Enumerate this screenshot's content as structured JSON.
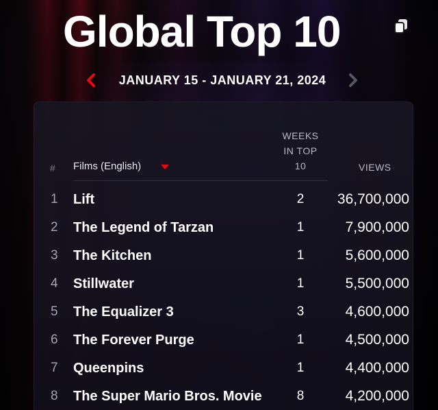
{
  "header": {
    "title": "Global Top 10",
    "icon": "copy-icon"
  },
  "date_nav": {
    "range": "JANUARY 15 - JANUARY 21, 2024",
    "prev_icon": "chevron-left-icon",
    "next_icon": "chevron-right-icon",
    "accent_color": "#e50914",
    "disabled_color": "#555566"
  },
  "table": {
    "columns": {
      "rank": "#",
      "category": "Films (English)",
      "weeks_line1": "WEEKS",
      "weeks_line2": "IN TOP",
      "weeks_line3": "10",
      "views": "VIEWS"
    },
    "category_caret_icon": "caret-down-icon",
    "rows": [
      {
        "rank": "1",
        "title": "Lift",
        "weeks": "2",
        "views": "36,700,000"
      },
      {
        "rank": "2",
        "title": "The Legend of Tarzan",
        "weeks": "1",
        "views": "7,900,000"
      },
      {
        "rank": "3",
        "title": "The Kitchen",
        "weeks": "1",
        "views": "5,600,000"
      },
      {
        "rank": "4",
        "title": "Stillwater",
        "weeks": "1",
        "views": "5,500,000"
      },
      {
        "rank": "5",
        "title": "The Equalizer 3",
        "weeks": "3",
        "views": "4,600,000"
      },
      {
        "rank": "6",
        "title": "The Forever Purge",
        "weeks": "1",
        "views": "4,500,000"
      },
      {
        "rank": "7",
        "title": "Queenpins",
        "weeks": "1",
        "views": "4,400,000"
      },
      {
        "rank": "8",
        "title": "The Super Mario Bros. Movie",
        "weeks": "8",
        "views": "4,200,000"
      }
    ]
  }
}
